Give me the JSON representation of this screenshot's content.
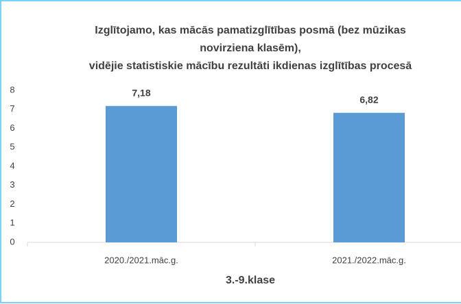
{
  "chart_data": {
    "type": "bar",
    "title": [
      "Izglītojamo, kas mācās  pamatizglītības posmā (bez mūzikas",
      "novirziena klasēm),",
      "vidējie statistiskie mācību rezultāti ikdienas izglītības procesā"
    ],
    "x_label": "3.-9.klase",
    "categories": [
      "2020./2021.māc.g.",
      "2021./2022.māc.g."
    ],
    "values": [
      7.18,
      6.82
    ],
    "value_labels": [
      "7,18",
      "6,82"
    ],
    "color": "#5b9bd5",
    "ylim": [
      0,
      8
    ],
    "yticks": [
      0,
      1,
      2,
      3,
      4,
      5,
      6,
      7,
      8
    ],
    "grid": false
  }
}
